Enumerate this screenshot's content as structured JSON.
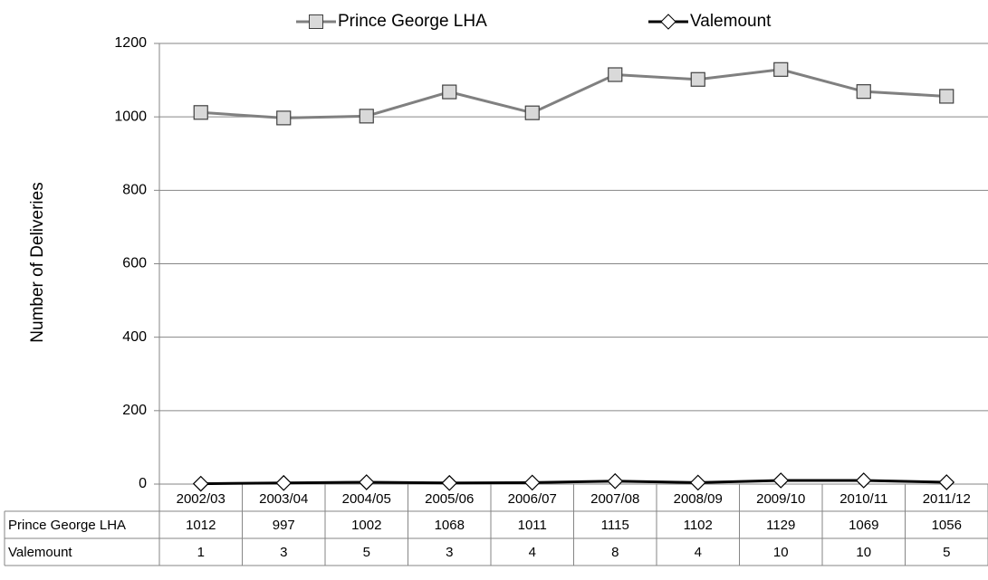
{
  "chart_data": {
    "type": "line",
    "y_label": "Number of Deliveries",
    "categories": [
      "2002/03",
      "2003/04",
      "2004/05",
      "2005/06",
      "2006/07",
      "2007/08",
      "2008/09",
      "2009/10",
      "2010/11",
      "2011/12"
    ],
    "series": [
      {
        "name": "Prince George LHA",
        "color": "#808080",
        "marker": "square",
        "values": [
          1012,
          997,
          1002,
          1068,
          1011,
          1115,
          1102,
          1129,
          1069,
          1056
        ]
      },
      {
        "name": "Valemount",
        "color": "#000000",
        "marker": "diamond",
        "values": [
          1,
          3,
          5,
          3,
          4,
          8,
          4,
          10,
          10,
          5
        ]
      }
    ],
    "ylim": [
      0,
      1200
    ],
    "yticks": [
      0,
      200,
      400,
      600,
      800,
      1000,
      1200
    ],
    "grid": true,
    "legend": "top"
  }
}
